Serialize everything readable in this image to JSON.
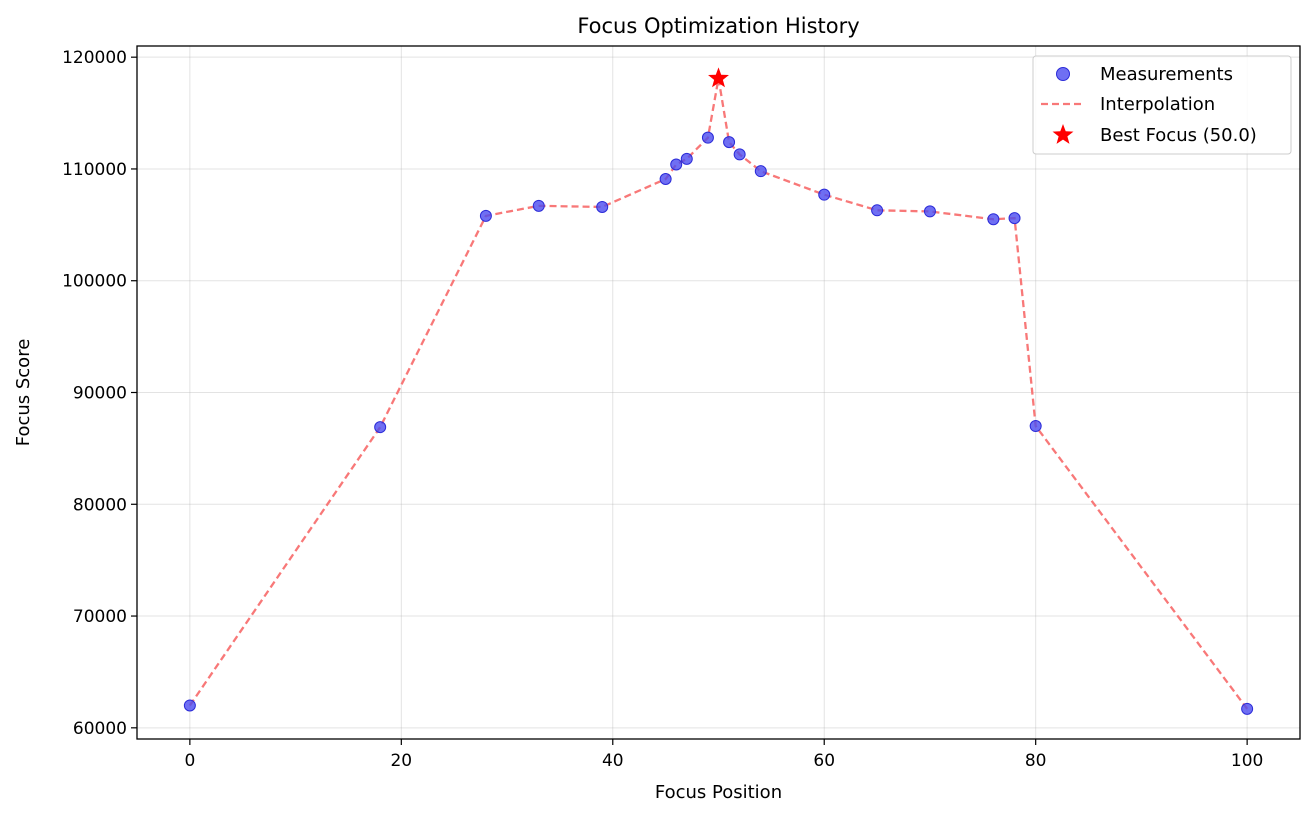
{
  "chart_data": {
    "type": "scatter",
    "title": "Focus Optimization History",
    "xlabel": "Focus Position",
    "ylabel": "Focus Score",
    "xlim": [
      -5,
      105
    ],
    "ylim": [
      59000,
      121000
    ],
    "xticks": [
      0,
      20,
      40,
      60,
      80,
      100
    ],
    "yticks": [
      60000,
      70000,
      80000,
      90000,
      100000,
      110000,
      120000
    ],
    "grid": true,
    "legend_position": "top-right",
    "series": [
      {
        "name": "Measurements",
        "kind": "scatter",
        "color": "#4b4bf0",
        "x": [
          0,
          18,
          28,
          33,
          39,
          45,
          46,
          47,
          49,
          51,
          52,
          54,
          60,
          65,
          70,
          76,
          78,
          80,
          100
        ],
        "y": [
          62000,
          86900,
          105800,
          106700,
          106600,
          109100,
          110400,
          110900,
          112800,
          112400,
          111300,
          109800,
          107700,
          106300,
          106200,
          105500,
          105600,
          87000,
          61700
        ]
      },
      {
        "name": "Interpolation",
        "kind": "line",
        "style": "dashed",
        "color": "#f87878",
        "x": [
          0,
          18,
          28,
          33,
          39,
          45,
          46,
          47,
          49,
          50,
          51,
          52,
          54,
          60,
          65,
          70,
          76,
          78,
          80,
          100
        ],
        "y": [
          62000,
          86900,
          105800,
          106700,
          106600,
          109100,
          110400,
          110900,
          112800,
          118100,
          112400,
          111300,
          109800,
          107700,
          106300,
          106200,
          105500,
          105600,
          87000,
          61700
        ]
      },
      {
        "name": "Best Focus (50.0)",
        "kind": "marker",
        "marker": "star",
        "color": "#ff0000",
        "x": [
          50
        ],
        "y": [
          118100
        ]
      }
    ]
  }
}
